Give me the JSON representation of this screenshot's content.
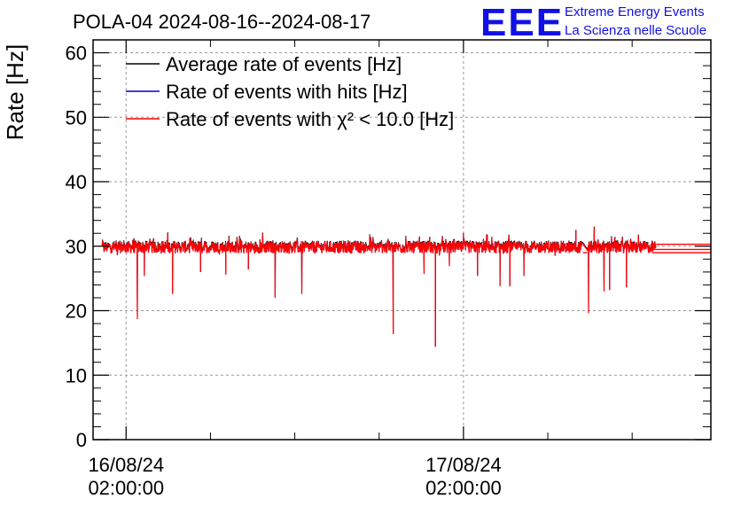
{
  "chart_data": {
    "type": "line",
    "title": "POLA-04 2024-08-16--2024-08-17",
    "xlabel": "",
    "ylabel": "Rate [Hz]",
    "ylim": [
      0,
      62
    ],
    "y_ticks": [
      0,
      10,
      20,
      30,
      40,
      50,
      60
    ],
    "x_range_hours": [
      -2.35,
      41.6
    ],
    "x_ticks": [
      {
        "hour": 0,
        "date": "16/08/24",
        "time": "02:00:00"
      },
      {
        "hour": 24,
        "date": "17/08/24",
        "time": "02:00:00"
      }
    ],
    "grid": true,
    "legend_position": "top-left",
    "series": [
      {
        "name": "Average rate of events [Hz]",
        "color": "#000000",
        "baseline": 29.9
      },
      {
        "name": "Rate of events with hits [Hz]",
        "color": "#0000cc",
        "baseline": 29.9
      },
      {
        "name": "Rate of events with χ² < 10.0 [Hz]",
        "color": "#ff0000",
        "baseline": 29.8,
        "data_span_hours": [
          -1.7,
          37.7
        ],
        "gap_hours": [
          32.5,
          32.8
        ],
        "noise_amplitude": 0.9,
        "dips": [
          {
            "hour": 0.8,
            "value": 18.7
          },
          {
            "hour": 1.3,
            "value": 25.4
          },
          {
            "hour": 3.3,
            "value": 22.6
          },
          {
            "hour": 5.3,
            "value": 26.0
          },
          {
            "hour": 7.1,
            "value": 25.6
          },
          {
            "hour": 8.7,
            "value": 26.4
          },
          {
            "hour": 10.6,
            "value": 22.0
          },
          {
            "hour": 12.5,
            "value": 22.6
          },
          {
            "hour": 19.0,
            "value": 16.4
          },
          {
            "hour": 21.2,
            "value": 25.7
          },
          {
            "hour": 22.0,
            "value": 14.4
          },
          {
            "hour": 23.0,
            "value": 26.9
          },
          {
            "hour": 25.0,
            "value": 25.4
          },
          {
            "hour": 26.6,
            "value": 23.8
          },
          {
            "hour": 27.3,
            "value": 23.8
          },
          {
            "hour": 28.3,
            "value": 25.4
          },
          {
            "hour": 32.9,
            "value": 19.6
          },
          {
            "hour": 34.0,
            "value": 23.0
          },
          {
            "hour": 34.4,
            "value": 23.2
          },
          {
            "hour": 35.6,
            "value": 23.6
          }
        ],
        "spikes": [
          {
            "hour": 24.0,
            "value": 31.9
          },
          {
            "hour": 32.0,
            "value": 32.4
          },
          {
            "hour": 33.3,
            "value": 32.9
          }
        ],
        "tail": {
          "from_hour": 37.7,
          "levels": [
            29.0,
            29.5,
            30.3
          ]
        }
      }
    ]
  },
  "logo": {
    "text": "EEE",
    "line1": "Extreme Energy Events",
    "line2": "La Scienza nelle Scuole"
  }
}
